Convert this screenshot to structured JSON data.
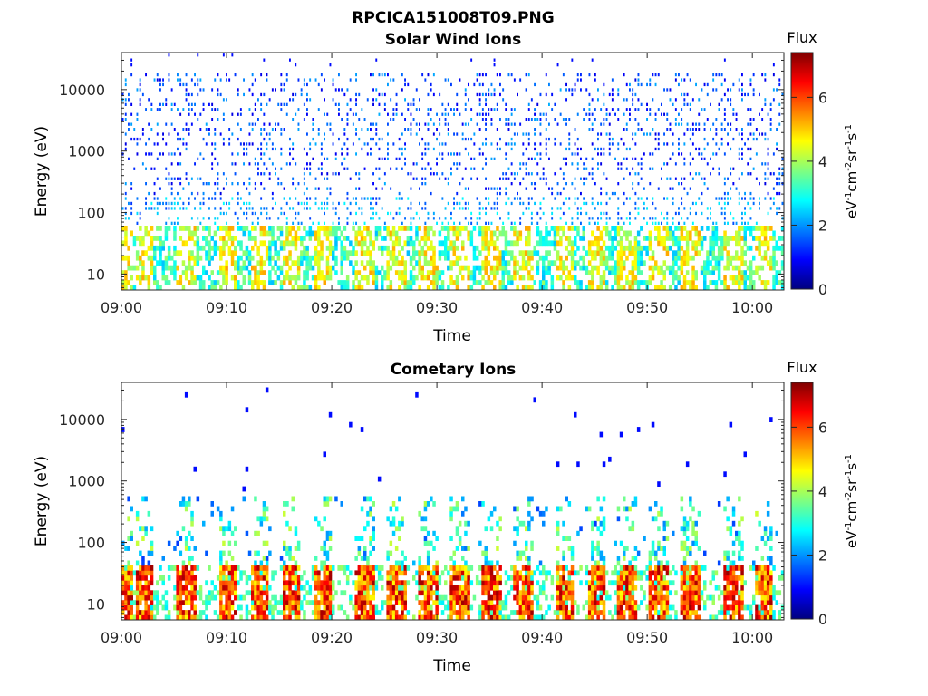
{
  "page_title": "RPCICA151008T09.PNG",
  "chart_data": [
    {
      "type": "heatmap",
      "title": "Solar Wind Ions",
      "xlabel": "Time",
      "ylabel": "Energy (eV)",
      "x_tick_labels": [
        "09:00",
        "09:10",
        "09:20",
        "09:30",
        "09:40",
        "09:50",
        "10:00"
      ],
      "xlim": [
        "09:00",
        "10:03"
      ],
      "y_scale": "log",
      "ylim": [
        5.5,
        40000
      ],
      "y_ticks": [
        10,
        100,
        1000,
        10000
      ],
      "y_tick_labels": [
        "10",
        "100",
        "1000",
        "10000"
      ],
      "colorbar": {
        "title": "Flux",
        "label": "eV-1cm-2sr-1s-1",
        "range": [
          0,
          7.4
        ],
        "ticks": [
          0,
          2,
          4,
          6
        ],
        "tick_labels": [
          "0",
          "2",
          "4",
          "6"
        ],
        "colormap": "jet"
      },
      "description_values": {
        "low_energy_band_eV": [
          5.5,
          60
        ],
        "low_band_flux_range": [
          2.5,
          5.5
        ],
        "scatter_band_eV": [
          60,
          20000
        ],
        "scatter_flux_range": [
          0.5,
          2.5
        ],
        "burst_times": [
          "09:00",
          "09:02",
          "09:06",
          "09:10",
          "09:13",
          "09:16",
          "09:19",
          "09:23",
          "09:26",
          "09:29",
          "09:32",
          "09:35",
          "09:38",
          "09:42",
          "09:45",
          "09:48",
          "09:51",
          "09:54",
          "09:58",
          "10:01"
        ]
      }
    },
    {
      "type": "heatmap",
      "title": "Cometary Ions",
      "xlabel": "Time",
      "ylabel": "Energy (eV)",
      "x_tick_labels": [
        "09:00",
        "09:10",
        "09:20",
        "09:30",
        "09:40",
        "09:50",
        "10:00"
      ],
      "xlim": [
        "09:00",
        "10:03"
      ],
      "y_scale": "log",
      "ylim": [
        5.5,
        40000
      ],
      "y_ticks": [
        10,
        100,
        1000,
        10000
      ],
      "y_tick_labels": [
        "10",
        "100",
        "1000",
        "10000"
      ],
      "colorbar": {
        "title": "Flux",
        "label": "eV-1cm-2sr-1s-1",
        "range": [
          0,
          7.4
        ],
        "ticks": [
          0,
          2,
          4,
          6
        ],
        "tick_labels": [
          "0",
          "2",
          "4",
          "6"
        ],
        "colormap": "jet"
      },
      "description_values": {
        "peak_band_eV": [
          5.5,
          45
        ],
        "peak_flux_range": [
          5,
          7.4
        ],
        "burst_times": [
          "09:00",
          "09:02",
          "09:06",
          "09:10",
          "09:13",
          "09:16",
          "09:19",
          "09:23",
          "09:26",
          "09:29",
          "09:32",
          "09:35",
          "09:38",
          "09:42",
          "09:45",
          "09:48",
          "09:51",
          "09:54",
          "09:58",
          "10:01"
        ]
      }
    }
  ]
}
